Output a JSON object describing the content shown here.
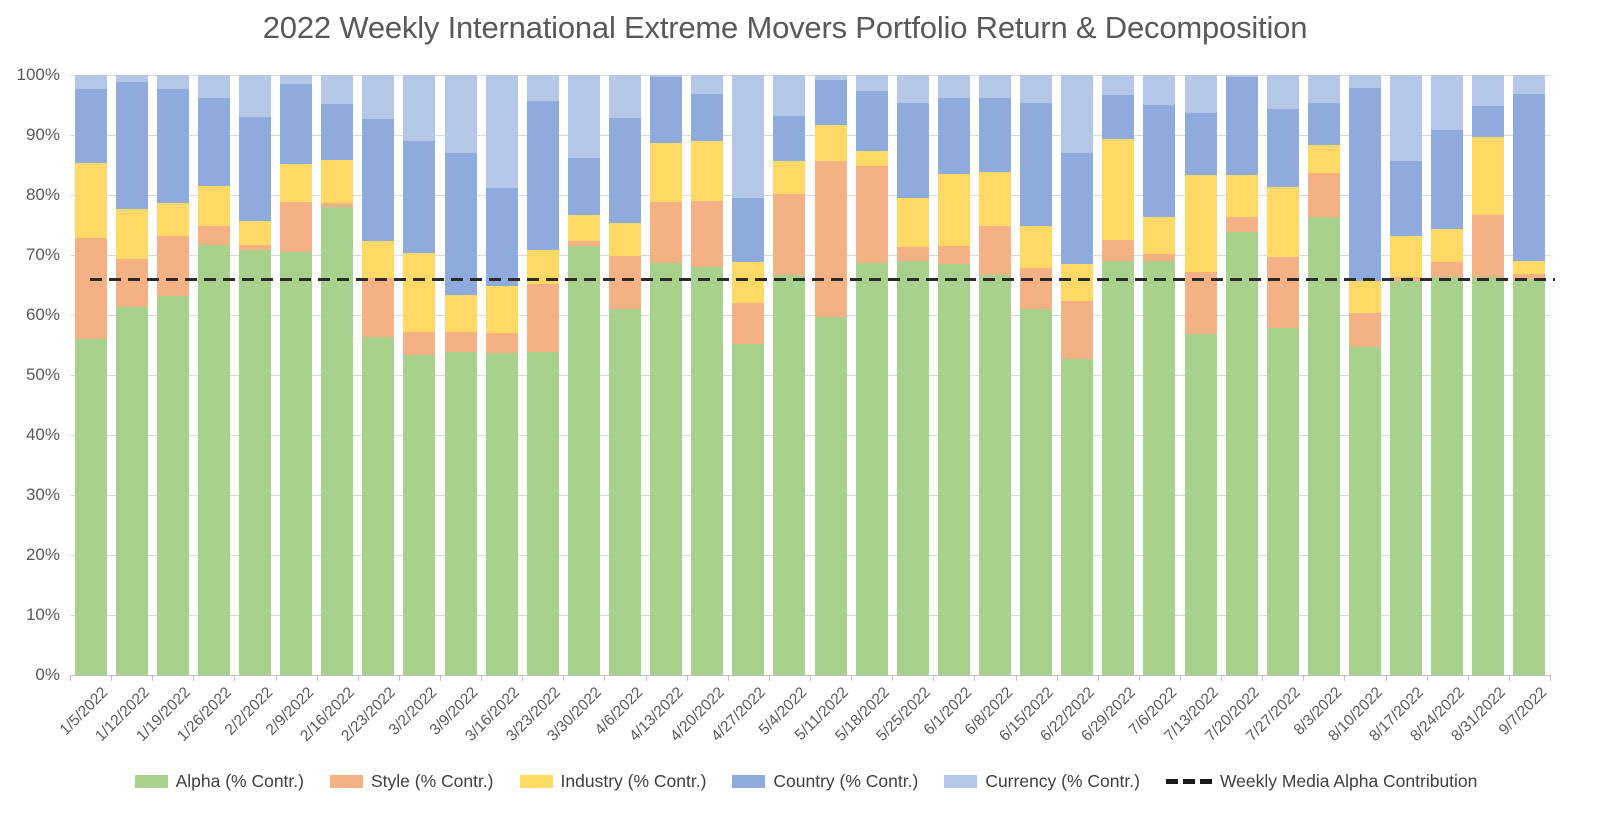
{
  "chart_data": {
    "type": "bar",
    "stacked": true,
    "title": "2022 Weekly International Extreme Movers Portfolio Return & Decomposition",
    "categories": [
      "1/5/2022",
      "1/12/2022",
      "1/19/2022",
      "1/26/2022",
      "2/2/2022",
      "2/9/2022",
      "2/16/2022",
      "2/23/2022",
      "3/2/2022",
      "3/9/2022",
      "3/16/2022",
      "3/23/2022",
      "3/30/2022",
      "4/6/2022",
      "4/13/2022",
      "4/20/2022",
      "4/27/2022",
      "5/4/2022",
      "5/11/2022",
      "5/18/2022",
      "5/25/2022",
      "6/1/2022",
      "6/8/2022",
      "6/15/2022",
      "6/22/2022",
      "6/29/2022",
      "7/6/2022",
      "7/13/2022",
      "7/20/2022",
      "7/27/2022",
      "8/3/2022",
      "8/10/2022",
      "8/17/2022",
      "8/24/2022",
      "8/31/2022",
      "9/7/2022"
    ],
    "series": [
      {
        "name": "Alpha (% Contr.)",
        "color": "#a9d18e",
        "values": [
          56.0,
          61.4,
          63.1,
          71.6,
          70.9,
          70.5,
          78.0,
          56.4,
          53.4,
          53.9,
          53.6,
          53.8,
          71.5,
          61.0,
          68.6,
          68.0,
          55.2,
          66.6,
          59.7,
          68.6,
          69.0,
          68.5,
          66.6,
          61.0,
          52.7,
          69.0,
          69.0,
          56.9,
          73.9,
          57.8,
          76.4,
          54.7,
          65.7,
          66.4,
          66.4,
          66.0
        ]
      },
      {
        "name": "Style (% Contr.)",
        "color": "#f4b183",
        "values": [
          16.9,
          8.0,
          10.1,
          3.2,
          0.7,
          8.4,
          0.6,
          9.7,
          3.7,
          3.2,
          3.4,
          11.3,
          0.9,
          8.8,
          10.2,
          11.0,
          6.8,
          13.6,
          25.9,
          16.3,
          2.4,
          3.0,
          8.2,
          6.9,
          9.6,
          3.5,
          1.2,
          10.3,
          2.5,
          11.9,
          7.2,
          5.6,
          0.7,
          2.4,
          10.3,
          0.8
        ]
      },
      {
        "name": "Industry (% Contr.)",
        "color": "#ffd966",
        "values": [
          12.5,
          8.2,
          5.4,
          6.7,
          4.0,
          6.2,
          7.2,
          6.3,
          13.2,
          6.2,
          7.9,
          5.7,
          4.2,
          5.5,
          9.8,
          10.0,
          6.8,
          5.4,
          6.1,
          2.4,
          8.1,
          12.0,
          9.0,
          6.9,
          6.2,
          16.8,
          6.2,
          16.1,
          6.9,
          11.7,
          4.7,
          5.3,
          6.8,
          5.5,
          12.9,
          2.2
        ]
      },
      {
        "name": "Country (% Contr.)",
        "color": "#8faadc",
        "values": [
          12.3,
          21.2,
          19.1,
          14.6,
          17.4,
          13.4,
          9.4,
          20.3,
          18.7,
          23.7,
          16.3,
          24.8,
          9.6,
          17.6,
          11.0,
          7.8,
          10.7,
          7.6,
          7.5,
          10.1,
          15.8,
          12.7,
          12.4,
          20.5,
          18.5,
          7.3,
          18.6,
          10.3,
          16.4,
          13.0,
          7.0,
          32.3,
          12.4,
          16.5,
          5.2,
          27.8
        ]
      },
      {
        "name": "Currency (% Contr.)",
        "color": "#b4c7e7",
        "values": [
          2.3,
          1.2,
          2.3,
          3.9,
          7.0,
          1.5,
          4.8,
          7.3,
          11.0,
          13.0,
          18.8,
          4.4,
          13.8,
          7.1,
          0.4,
          3.2,
          20.5,
          6.8,
          0.8,
          2.6,
          4.7,
          3.8,
          3.8,
          4.7,
          13.0,
          3.4,
          5.0,
          6.4,
          0.3,
          5.6,
          4.7,
          2.1,
          14.4,
          9.2,
          5.2,
          3.2
        ]
      }
    ],
    "reference_line": {
      "label": "Weekly Media Alpha Contribution",
      "value": 65.8,
      "color": "#2b2b2b",
      "style": "dashed"
    },
    "y_axis": {
      "min": 0,
      "max": 100,
      "grid": true,
      "ticks": [
        "0%",
        "10%",
        "20%",
        "30%",
        "40%",
        "50%",
        "60%",
        "70%",
        "80%",
        "90%",
        "100%"
      ]
    },
    "legend_position": "bottom",
    "text_color": "#595959"
  }
}
